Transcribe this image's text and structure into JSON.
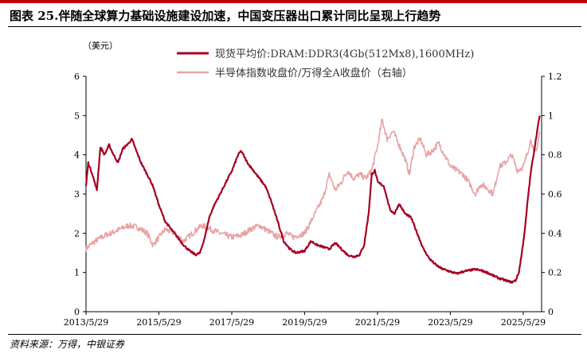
{
  "header": {
    "title": "图表 25.伴随全球算力基础设施建设加速，中国变压器出口累计同比呈现上行趋势",
    "accent_color": "#c00000"
  },
  "source": "资料来源：万得，中银证券",
  "chart_data": {
    "type": "line",
    "left_unit": "（美元）",
    "x_tick_labels": [
      "2013/5/29",
      "2015/5/29",
      "2017/5/29",
      "2019/5/29",
      "2021/5/29",
      "2023/5/29",
      "2025/5/29"
    ],
    "x_range": [
      "2013/5/29",
      "2025/11/29"
    ],
    "y_left": {
      "min": 0,
      "max": 6,
      "ticks": [
        "0",
        "1",
        "2",
        "3",
        "4",
        "5",
        "6"
      ]
    },
    "y_right": {
      "min": 0,
      "max": 1.2,
      "ticks": [
        "0",
        "0.2",
        "0.4",
        "0.6",
        "0.8",
        "1",
        "1.2"
      ]
    },
    "grid": false,
    "legend_position": "top-center",
    "series": [
      {
        "name": "现货平均价:DRAM:DDR3(4Gb(512Mx8),1600MHz)",
        "axis": "left",
        "color": "#a50021",
        "points": [
          [
            "2013/5/29",
            3.2
          ],
          [
            "2013/6/20",
            3.8
          ],
          [
            "2013/8/1",
            3.5
          ],
          [
            "2013/9/15",
            3.1
          ],
          [
            "2013/10/20",
            4.2
          ],
          [
            "2013/12/1",
            4.0
          ],
          [
            "2014/1/15",
            4.25
          ],
          [
            "2014/3/1",
            4.0
          ],
          [
            "2014/4/15",
            3.8
          ],
          [
            "2014/6/1",
            4.15
          ],
          [
            "2014/8/1",
            4.3
          ],
          [
            "2014/9/1",
            4.4
          ],
          [
            "2014/10/15",
            4.1
          ],
          [
            "2014/12/1",
            3.8
          ],
          [
            "2015/2/1",
            3.5
          ],
          [
            "2015/4/1",
            3.2
          ],
          [
            "2015/6/1",
            2.7
          ],
          [
            "2015/8/1",
            2.3
          ],
          [
            "2015/10/1",
            2.1
          ],
          [
            "2015/12/1",
            1.9
          ],
          [
            "2016/2/1",
            1.7
          ],
          [
            "2016/4/1",
            1.55
          ],
          [
            "2016/6/1",
            1.45
          ],
          [
            "2016/7/15",
            1.5
          ],
          [
            "2016/9/1",
            1.9
          ],
          [
            "2016/10/15",
            2.4
          ],
          [
            "2016/12/1",
            2.7
          ],
          [
            "2017/2/1",
            3.0
          ],
          [
            "2017/4/1",
            3.3
          ],
          [
            "2017/6/1",
            3.6
          ],
          [
            "2017/8/1",
            4.0
          ],
          [
            "2017/9/1",
            4.1
          ],
          [
            "2017/11/1",
            3.8
          ],
          [
            "2018/1/1",
            3.6
          ],
          [
            "2018/3/1",
            3.4
          ],
          [
            "2018/5/1",
            3.2
          ],
          [
            "2018/7/1",
            2.8
          ],
          [
            "2018/9/1",
            2.3
          ],
          [
            "2018/11/1",
            1.8
          ],
          [
            "2019/1/1",
            1.6
          ],
          [
            "2019/3/1",
            1.5
          ],
          [
            "2019/5/29",
            1.55
          ],
          [
            "2019/8/1",
            1.8
          ],
          [
            "2019/10/1",
            1.7
          ],
          [
            "2019/12/1",
            1.65
          ],
          [
            "2020/2/1",
            1.6
          ],
          [
            "2020/4/1",
            1.75
          ],
          [
            "2020/6/1",
            1.6
          ],
          [
            "2020/8/1",
            1.45
          ],
          [
            "2020/10/1",
            1.4
          ],
          [
            "2020/12/1",
            1.45
          ],
          [
            "2021/1/15",
            1.7
          ],
          [
            "2021/3/1",
            2.5
          ],
          [
            "2021/4/1",
            3.5
          ],
          [
            "2021/5/1",
            3.6
          ],
          [
            "2021/6/1",
            3.3
          ],
          [
            "2021/8/1",
            3.2
          ],
          [
            "2021/10/1",
            2.6
          ],
          [
            "2021/11/15",
            2.5
          ],
          [
            "2022/1/1",
            2.75
          ],
          [
            "2022/3/1",
            2.5
          ],
          [
            "2022/5/1",
            2.4
          ],
          [
            "2022/7/1",
            2.0
          ],
          [
            "2022/9/1",
            1.6
          ],
          [
            "2022/11/1",
            1.35
          ],
          [
            "2023/1/1",
            1.2
          ],
          [
            "2023/3/1",
            1.1
          ],
          [
            "2023/5/29",
            1.02
          ],
          [
            "2023/8/1",
            0.97
          ],
          [
            "2023/10/1",
            1.02
          ],
          [
            "2023/12/1",
            1.05
          ],
          [
            "2024/2/1",
            1.08
          ],
          [
            "2024/4/1",
            1.05
          ],
          [
            "2024/6/1",
            1.0
          ],
          [
            "2024/8/1",
            0.92
          ],
          [
            "2024/10/1",
            0.85
          ],
          [
            "2024/12/1",
            0.8
          ],
          [
            "2025/2/1",
            0.75
          ],
          [
            "2025/3/15",
            0.8
          ],
          [
            "2025/4/15",
            1.0
          ],
          [
            "2025/5/15",
            1.5
          ],
          [
            "2025/6/15",
            2.1
          ],
          [
            "2025/7/15",
            2.9
          ],
          [
            "2025/8/15",
            3.6
          ],
          [
            "2025/9/15",
            4.1
          ],
          [
            "2025/10/15",
            4.6
          ],
          [
            "2025/11/10",
            5.0
          ]
        ]
      },
      {
        "name": "半导体指数收盘价/万得全A收盘价（右轴）",
        "axis": "right",
        "color": "#e8a3a3",
        "points": [
          [
            "2013/5/29",
            0.32
          ],
          [
            "2013/8/1",
            0.35
          ],
          [
            "2013/11/1",
            0.38
          ],
          [
            "2014/2/1",
            0.4
          ],
          [
            "2014/5/1",
            0.42
          ],
          [
            "2014/8/1",
            0.44
          ],
          [
            "2014/11/1",
            0.43
          ],
          [
            "2015/2/1",
            0.4
          ],
          [
            "2015/4/1",
            0.34
          ],
          [
            "2015/6/1",
            0.38
          ],
          [
            "2015/8/1",
            0.42
          ],
          [
            "2015/11/1",
            0.4
          ],
          [
            "2016/2/1",
            0.36
          ],
          [
            "2016/5/1",
            0.4
          ],
          [
            "2016/8/1",
            0.44
          ],
          [
            "2016/11/1",
            0.42
          ],
          [
            "2017/2/1",
            0.4
          ],
          [
            "2017/5/29",
            0.38
          ],
          [
            "2017/9/1",
            0.39
          ],
          [
            "2017/12/1",
            0.42
          ],
          [
            "2018/3/1",
            0.44
          ],
          [
            "2018/6/1",
            0.41
          ],
          [
            "2018/9/1",
            0.38
          ],
          [
            "2018/12/1",
            0.4
          ],
          [
            "2019/2/1",
            0.38
          ],
          [
            "2019/5/29",
            0.4
          ],
          [
            "2019/8/1",
            0.46
          ],
          [
            "2019/10/1",
            0.52
          ],
          [
            "2019/12/1",
            0.58
          ],
          [
            "2020/2/1",
            0.7
          ],
          [
            "2020/4/1",
            0.62
          ],
          [
            "2020/6/1",
            0.66
          ],
          [
            "2020/8/1",
            0.72
          ],
          [
            "2020/10/1",
            0.68
          ],
          [
            "2020/12/1",
            0.7
          ],
          [
            "2021/2/1",
            0.68
          ],
          [
            "2021/4/1",
            0.72
          ],
          [
            "2021/6/1",
            0.85
          ],
          [
            "2021/7/15",
            0.98
          ],
          [
            "2021/9/1",
            0.88
          ],
          [
            "2021/11/1",
            0.92
          ],
          [
            "2022/1/1",
            0.85
          ],
          [
            "2022/3/1",
            0.78
          ],
          [
            "2022/4/15",
            0.7
          ],
          [
            "2022/6/1",
            0.84
          ],
          [
            "2022/8/1",
            0.88
          ],
          [
            "2022/10/1",
            0.8
          ],
          [
            "2022/12/1",
            0.82
          ],
          [
            "2023/2/1",
            0.86
          ],
          [
            "2023/4/1",
            0.8
          ],
          [
            "2023/6/1",
            0.74
          ],
          [
            "2023/8/1",
            0.72
          ],
          [
            "2023/10/1",
            0.7
          ],
          [
            "2023/12/1",
            0.66
          ],
          [
            "2024/2/1",
            0.6
          ],
          [
            "2024/4/1",
            0.65
          ],
          [
            "2024/6/1",
            0.63
          ],
          [
            "2024/8/1",
            0.6
          ],
          [
            "2024/10/1",
            0.74
          ],
          [
            "2024/12/1",
            0.76
          ],
          [
            "2025/2/1",
            0.8
          ],
          [
            "2025/4/1",
            0.72
          ],
          [
            "2025/6/1",
            0.74
          ],
          [
            "2025/7/15",
            0.82
          ],
          [
            "2025/8/15",
            0.88
          ],
          [
            "2025/9/15",
            0.8
          ],
          [
            "2025/10/15",
            0.84
          ],
          [
            "2025/11/10",
            0.92
          ]
        ]
      }
    ]
  }
}
